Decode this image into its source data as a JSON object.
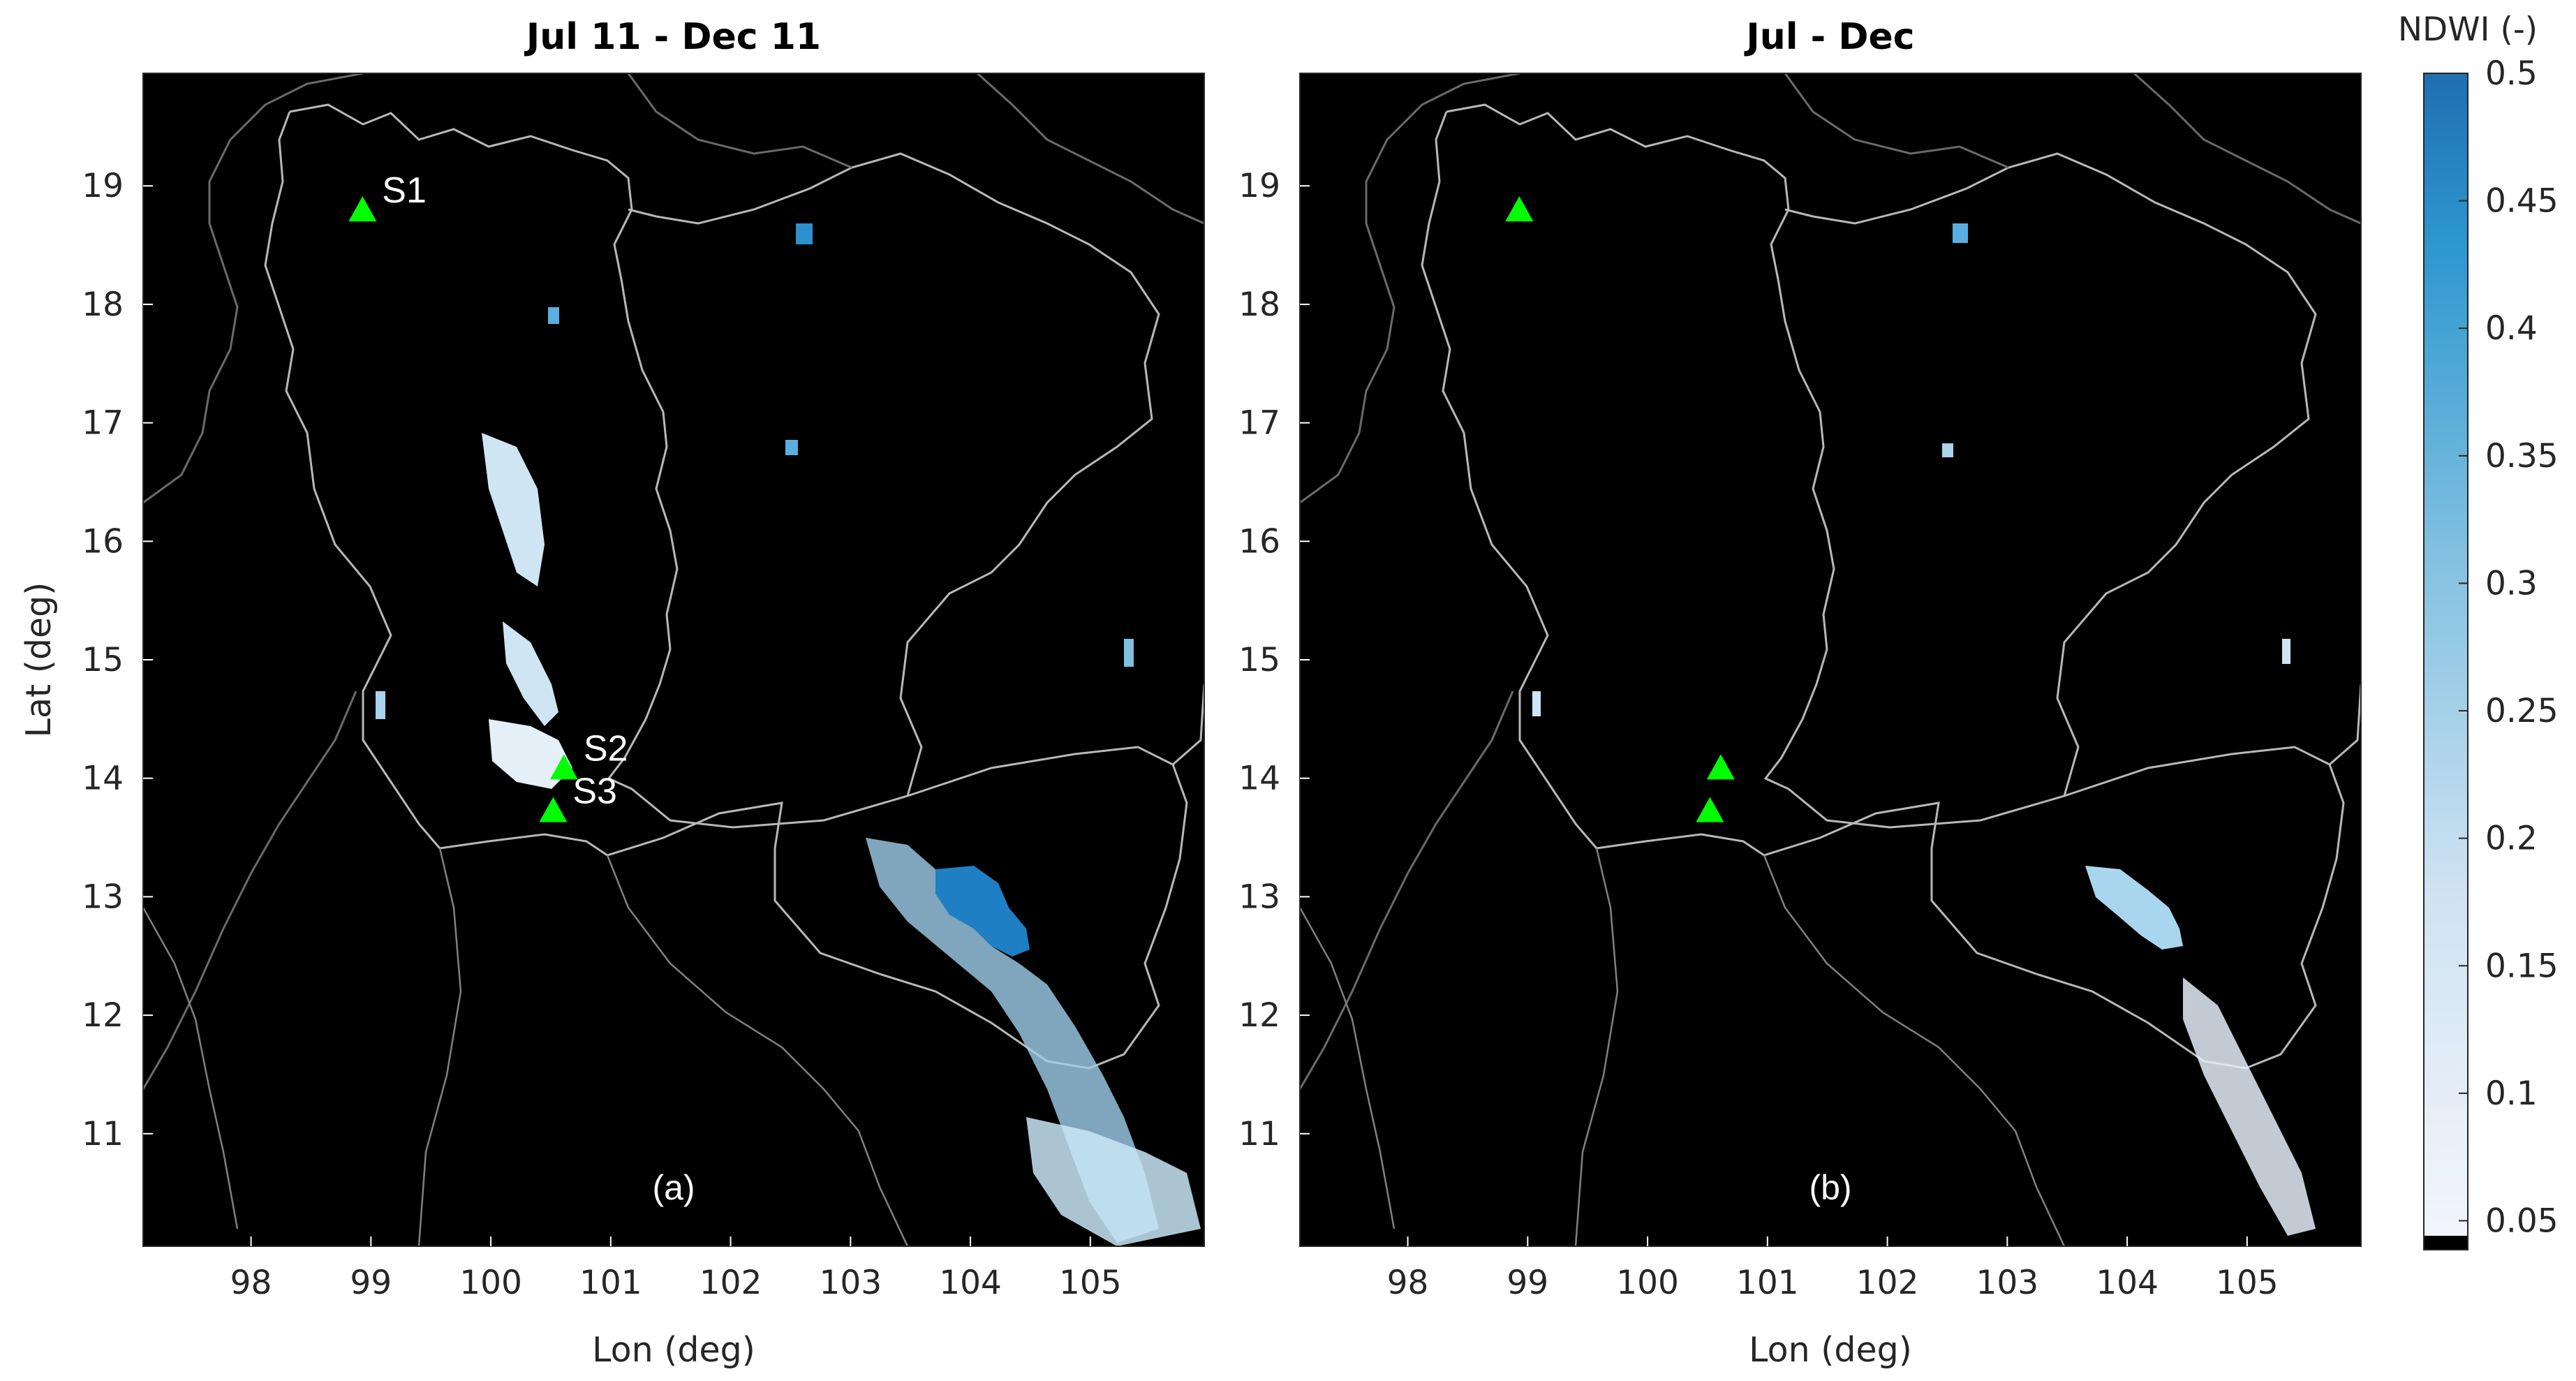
{
  "panels": [
    {
      "id": "a",
      "title": "Jul 11 - Dec 11",
      "panel_label": "(a)",
      "stations": [
        {
          "label": "S1",
          "lon": 98.93,
          "lat": 18.8
        },
        {
          "label": "S2",
          "lon": 100.61,
          "lat": 14.09
        },
        {
          "label": "S3",
          "lon": 100.52,
          "lat": 13.73
        }
      ]
    },
    {
      "id": "b",
      "title": "Jul - Dec",
      "panel_label": "(b)",
      "stations": [
        {
          "label": "",
          "lon": 98.93,
          "lat": 18.8
        },
        {
          "label": "",
          "lon": 100.61,
          "lat": 14.09
        },
        {
          "label": "",
          "lon": 100.52,
          "lat": 13.73
        }
      ]
    }
  ],
  "axes": {
    "xlabel": "Lon (deg)",
    "ylabel": "Lat (deg)",
    "xlim": [
      97.1,
      105.95
    ],
    "ylim": [
      10.05,
      19.95
    ],
    "xticks": [
      "98",
      "99",
      "100",
      "101",
      "102",
      "103",
      "104",
      "105"
    ],
    "yticks": [
      "11",
      "12",
      "13",
      "14",
      "15",
      "16",
      "17",
      "18",
      "19"
    ],
    "background": "#000000"
  },
  "colorbar": {
    "title": "NDWI (-)",
    "ticks": [
      "0.05",
      "0.1",
      "0.15",
      "0.2",
      "0.25",
      "0.3",
      "0.35",
      "0.4",
      "0.45",
      "0.5"
    ],
    "range": [
      0.04,
      0.5
    ],
    "color_low": "#f4f6fc",
    "color_high": "#1f6fb2"
  },
  "marker_color": "#00ff00"
}
